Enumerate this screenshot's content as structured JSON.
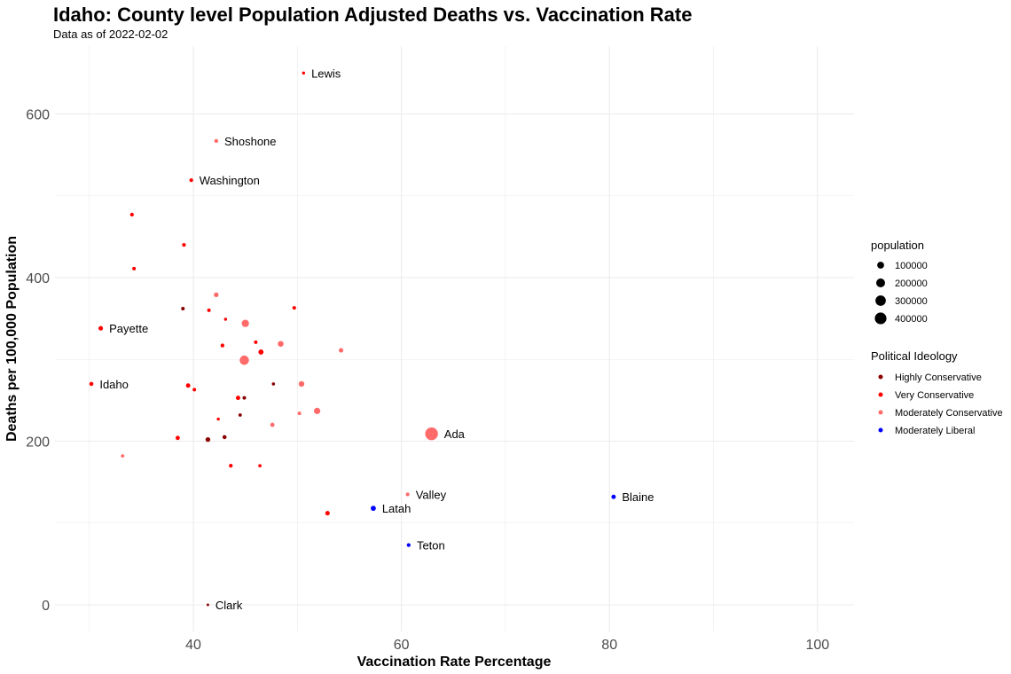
{
  "chart_data": {
    "type": "scatter",
    "title": "Idaho: County level Population Adjusted Deaths vs. Vaccination Rate",
    "subtitle": "Data as of 2022-02-02",
    "xlabel": "Vaccination Rate Percentage",
    "ylabel": "Deaths per 100,000 Population",
    "xlim": [
      27,
      104
    ],
    "ylim": [
      -35,
      685
    ],
    "xticks": [
      40,
      60,
      80,
      100
    ],
    "yticks": [
      0,
      200,
      400,
      600
    ],
    "grid": true,
    "legend_position": "right",
    "size_legend": {
      "title": "population",
      "values": [
        100000,
        200000,
        300000,
        400000
      ]
    },
    "color_legend": {
      "title": "Political Ideology",
      "entries": [
        {
          "name": "Highly Conservative",
          "color": "#8b0000"
        },
        {
          "name": "Very Conservative",
          "color": "#ff0000"
        },
        {
          "name": "Moderately Conservative",
          "color": "#ff6a6a"
        },
        {
          "name": "Moderately Liberal",
          "color": "#0000ff"
        }
      ]
    },
    "points": [
      {
        "x": 50.6,
        "y": 650,
        "ideology": "Very Conservative",
        "population": 4000,
        "label": "Lewis"
      },
      {
        "x": 42.2,
        "y": 567,
        "ideology": "Moderately Conservative",
        "population": 13000,
        "label": "Shoshone"
      },
      {
        "x": 39.8,
        "y": 519,
        "ideology": "Very Conservative",
        "population": 10000,
        "label": "Washington"
      },
      {
        "x": 34.1,
        "y": 477,
        "ideology": "Very Conservative",
        "population": 12000
      },
      {
        "x": 39.1,
        "y": 440,
        "ideology": "Very Conservative",
        "population": 12000
      },
      {
        "x": 34.3,
        "y": 411,
        "ideology": "Very Conservative",
        "population": 9000
      },
      {
        "x": 42.2,
        "y": 379,
        "ideology": "Moderately Conservative",
        "population": 30000
      },
      {
        "x": 39.0,
        "y": 362,
        "ideology": "Highly Conservative",
        "population": 9000
      },
      {
        "x": 41.5,
        "y": 360,
        "ideology": "Very Conservative",
        "population": 9000
      },
      {
        "x": 43.1,
        "y": 349,
        "ideology": "Very Conservative",
        "population": 4000
      },
      {
        "x": 49.7,
        "y": 363,
        "ideology": "Very Conservative",
        "population": 10000
      },
      {
        "x": 31.1,
        "y": 338,
        "ideology": "Very Conservative",
        "population": 25000,
        "label": "Payette"
      },
      {
        "x": 45.0,
        "y": 344,
        "ideology": "Moderately Conservative",
        "population": 120000
      },
      {
        "x": 42.8,
        "y": 317,
        "ideology": "Very Conservative",
        "population": 12000
      },
      {
        "x": 46.0,
        "y": 321,
        "ideology": "Very Conservative",
        "population": 9000
      },
      {
        "x": 48.4,
        "y": 319,
        "ideology": "Moderately Conservative",
        "population": 60000
      },
      {
        "x": 46.5,
        "y": 309,
        "ideology": "Very Conservative",
        "population": 40000
      },
      {
        "x": 54.2,
        "y": 311,
        "ideology": "Moderately Conservative",
        "population": 25000
      },
      {
        "x": 44.9,
        "y": 299,
        "ideology": "Moderately Conservative",
        "population": 230000
      },
      {
        "x": 30.2,
        "y": 270,
        "ideology": "Very Conservative",
        "population": 17000,
        "label": "Idaho"
      },
      {
        "x": 39.5,
        "y": 268,
        "ideology": "Very Conservative",
        "population": 22000
      },
      {
        "x": 40.1,
        "y": 263,
        "ideology": "Very Conservative",
        "population": 9000
      },
      {
        "x": 47.7,
        "y": 270,
        "ideology": "Highly Conservative",
        "population": 5000
      },
      {
        "x": 50.4,
        "y": 270,
        "ideology": "Moderately Conservative",
        "population": 55000
      },
      {
        "x": 44.3,
        "y": 253,
        "ideology": "Very Conservative",
        "population": 22000
      },
      {
        "x": 44.9,
        "y": 253,
        "ideology": "Highly Conservative",
        "population": 9000
      },
      {
        "x": 44.5,
        "y": 232,
        "ideology": "Highly Conservative",
        "population": 7000
      },
      {
        "x": 42.4,
        "y": 227,
        "ideology": "Very Conservative",
        "population": 3000
      },
      {
        "x": 51.9,
        "y": 237,
        "ideology": "Moderately Conservative",
        "population": 80000
      },
      {
        "x": 50.2,
        "y": 234,
        "ideology": "Moderately Conservative",
        "population": 9000
      },
      {
        "x": 47.6,
        "y": 220,
        "ideology": "Moderately Conservative",
        "population": 20000
      },
      {
        "x": 38.5,
        "y": 204,
        "ideology": "Very Conservative",
        "population": 20000
      },
      {
        "x": 41.4,
        "y": 202,
        "ideology": "Highly Conservative",
        "population": 30000
      },
      {
        "x": 43.0,
        "y": 205,
        "ideology": "Highly Conservative",
        "population": 17000
      },
      {
        "x": 62.9,
        "y": 209,
        "ideology": "Moderately Conservative",
        "population": 494000,
        "label": "Ada"
      },
      {
        "x": 33.2,
        "y": 182,
        "ideology": "Moderately Conservative",
        "population": 7000
      },
      {
        "x": 43.6,
        "y": 170,
        "ideology": "Very Conservative",
        "population": 12000
      },
      {
        "x": 46.4,
        "y": 170,
        "ideology": "Very Conservative",
        "population": 6000
      },
      {
        "x": 60.6,
        "y": 135,
        "ideology": "Moderately Conservative",
        "population": 11000,
        "label": "Valley"
      },
      {
        "x": 80.4,
        "y": 132,
        "ideology": "Moderately Liberal",
        "population": 23000,
        "label": "Blaine"
      },
      {
        "x": 57.3,
        "y": 118,
        "ideology": "Moderately Liberal",
        "population": 40000,
        "label": "Latah"
      },
      {
        "x": 52.9,
        "y": 112,
        "ideology": "Very Conservative",
        "population": 25000
      },
      {
        "x": 60.7,
        "y": 73,
        "ideology": "Moderately Liberal",
        "population": 12000,
        "label": "Teton"
      },
      {
        "x": 41.4,
        "y": 0,
        "ideology": "Highly Conservative",
        "population": 800,
        "label": "Clark"
      }
    ]
  }
}
